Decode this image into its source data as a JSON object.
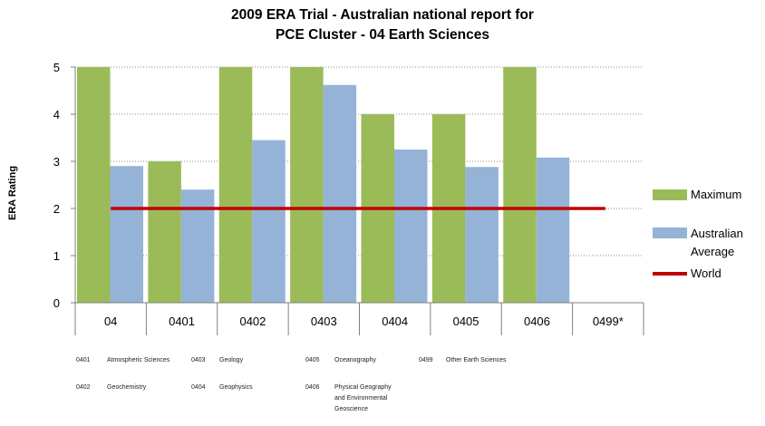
{
  "chart_data": {
    "type": "bar",
    "title_line1": "2009 ERA Trial - Australian national report for",
    "title_line2": "PCE Cluster - 04 Earth Sciences",
    "ylabel": "ERA Rating",
    "xlabel": "",
    "ylim": [
      0,
      5
    ],
    "y_ticks": [
      "0",
      "1",
      "2",
      "3",
      "4",
      "5"
    ],
    "categories": [
      "04",
      "0401",
      "0402",
      "0403",
      "0404",
      "0405",
      "0406",
      "0499*"
    ],
    "series": [
      {
        "name": "Maximum",
        "color": "#9bbb59",
        "values": [
          5,
          3,
          5,
          5,
          4,
          4,
          5,
          null
        ]
      },
      {
        "name": "Australian Average",
        "color": "#95b3d7",
        "values": [
          2.9,
          2.4,
          3.45,
          4.62,
          3.25,
          2.88,
          3.08,
          null
        ]
      }
    ],
    "line": {
      "name": "World",
      "color": "#c00000",
      "value": 2
    },
    "grid": true,
    "legend_position": "right"
  },
  "legend": {
    "maximum": "Maximum",
    "avg_line1": "Australian",
    "avg_line2": "Average",
    "world": "World"
  },
  "codes": [
    {
      "code": "0401",
      "name": "Atmospheric Sciences"
    },
    {
      "code": "0402",
      "name": "Geochemistry"
    },
    {
      "code": "0403",
      "name": "Geology"
    },
    {
      "code": "0404",
      "name": "Geophysics"
    },
    {
      "code": "0405",
      "name": "Oceanography"
    },
    {
      "code": "0406",
      "name": "Physical Geography",
      "extra": [
        "and Environmental",
        "Geoscience"
      ]
    },
    {
      "code": "0499",
      "name": "Other Earth Sciences"
    }
  ]
}
